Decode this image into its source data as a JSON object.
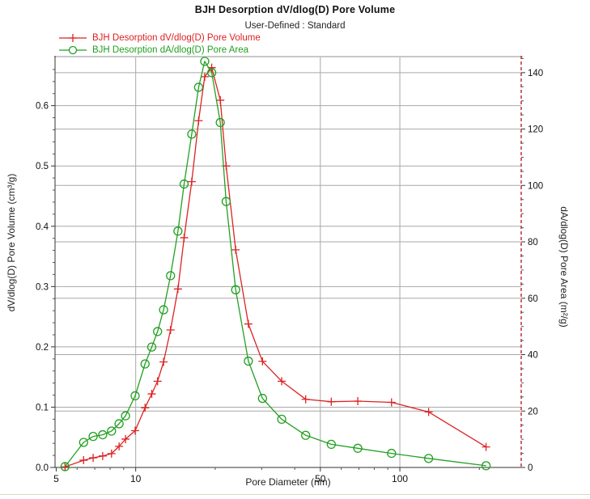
{
  "title": "BJH Desorption dV/dlog(D) Pore Volume",
  "subtitle": "User-Defined : Standard",
  "legend": [
    {
      "label": "BJH Desorption dV/dlog(D) Pore Volume",
      "color": "#dd2222",
      "marker": "plus"
    },
    {
      "label": "BJH Desorption dA/dlog(D) Pore Area",
      "color": "#22a022",
      "marker": "circle"
    }
  ],
  "axes": {
    "xlabel": "Pore Diameter (nm)",
    "ylabel_left": "dV/dlog(D) Pore Volume (cm³/g)",
    "ylabel_right": "dA/dlog(D) Pore Area (m²/g)"
  },
  "colors": {
    "grid": "#a8a8a8",
    "axis": "#333333",
    "top_edge": "#c8c8c8",
    "right_axis": "#bb2222",
    "tick": "#555555"
  },
  "chart_data": {
    "type": "line",
    "x_scale": "log",
    "title": "BJH Desorption dV/dlog(D) Pore Volume",
    "subtitle": "User-Defined : Standard",
    "xlabel": "Pore Diameter (nm)",
    "ylabel_left": "dV/dlog(D) Pore Volume (cm³/g)",
    "ylabel_right": "dA/dlog(D) Pore Area (m²/g)",
    "xlim": [
      4.95,
      288
    ],
    "ylim_left": [
      0,
      0.68
    ],
    "ylim_right": [
      0,
      145.4
    ],
    "x_major_ticks": [
      5,
      10,
      50,
      100
    ],
    "x_major_labels": [
      "5",
      "10",
      "50",
      "100"
    ],
    "x_minor_ticks": [
      6,
      7,
      8,
      9,
      20,
      30,
      40,
      60,
      70,
      80,
      90,
      200
    ],
    "x_gridlines": [
      10,
      50,
      100
    ],
    "y_left_major_ticks": [
      0.0,
      0.1,
      0.2,
      0.3,
      0.4,
      0.5,
      0.6
    ],
    "y_left_minor_step": 0.02,
    "y_right_major_ticks": [
      0,
      20,
      40,
      60,
      80,
      100,
      120,
      140
    ],
    "y_right_minor_step": 5,
    "grid": true,
    "legend_position": "top-left",
    "x": [
      5.4,
      6.35,
      6.9,
      7.5,
      8.1,
      8.65,
      9.15,
      9.95,
      10.85,
      11.5,
      12.1,
      12.75,
      13.55,
      14.45,
      15.25,
      16.3,
      17.3,
      18.25,
      19.4,
      20.9,
      22.0,
      23.9,
      26.7,
      30.2,
      35.7,
      44.0,
      55.0,
      69.3,
      93.0,
      128.5,
      212.0
    ],
    "series": [
      {
        "name": "BJH Desorption dV/dlog(D) Pore Volume",
        "axis": "left",
        "color": "#dd2222",
        "marker": "plus",
        "values": [
          0.001,
          0.012,
          0.016,
          0.019,
          0.023,
          0.035,
          0.047,
          0.061,
          0.099,
          0.122,
          0.143,
          0.175,
          0.228,
          0.296,
          0.381,
          0.474,
          0.575,
          0.648,
          0.663,
          0.609,
          0.5,
          0.361,
          0.238,
          0.176,
          0.143,
          0.113,
          0.109,
          0.11,
          0.108,
          0.092,
          0.034
        ]
      },
      {
        "name": "BJH Desorption dA/dlog(D) Pore Area",
        "axis": "right",
        "color": "#22a022",
        "marker": "circle",
        "values": [
          0.3,
          8.9,
          11.0,
          11.6,
          12.9,
          15.5,
          18.3,
          25.4,
          36.7,
          42.7,
          48.2,
          55.9,
          68.0,
          83.8,
          100.5,
          118.2,
          134.8,
          144.0,
          140.0,
          122.3,
          94.3,
          63.0,
          37.7,
          24.5,
          17.1,
          11.4,
          8.2,
          6.8,
          5.0,
          3.2,
          0.6
        ]
      }
    ]
  }
}
